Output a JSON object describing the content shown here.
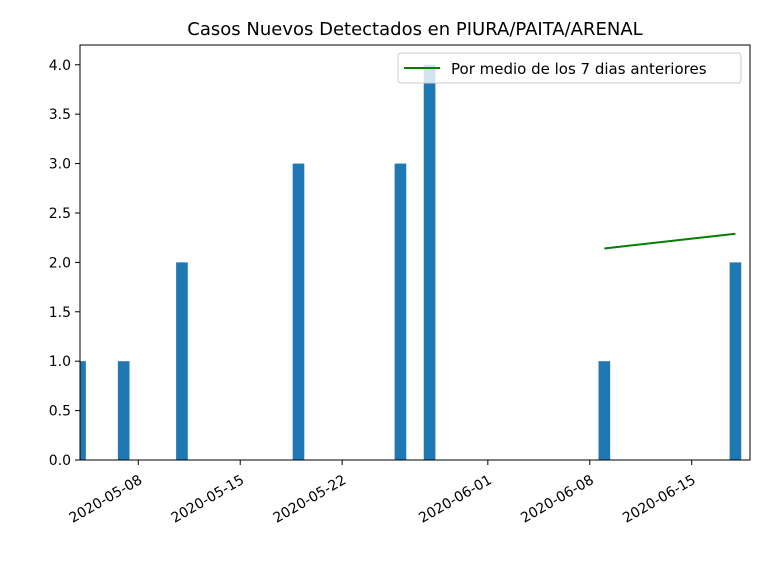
{
  "chart_data": {
    "type": "bar",
    "title": "Casos Nuevos Detectados en PIURA/PAITA/ARENAL",
    "xlabel": "",
    "ylabel": "",
    "ylim": [
      0,
      4.2
    ],
    "xlim": [
      "2020-05-04",
      "2020-06-19"
    ],
    "yticks": [
      "0.0",
      "0.5",
      "1.0",
      "1.5",
      "2.0",
      "2.5",
      "3.0",
      "3.5",
      "4.0"
    ],
    "xticks": [
      "2020-05-08",
      "2020-05-15",
      "2020-05-22",
      "2020-06-01",
      "2020-06-08",
      "2020-06-15"
    ],
    "grid": false,
    "legend_position": "top-right",
    "bars": [
      {
        "x": "2020-05-04",
        "value": 1
      },
      {
        "x": "2020-05-07",
        "value": 1
      },
      {
        "x": "2020-05-11",
        "value": 2
      },
      {
        "x": "2020-05-19",
        "value": 3
      },
      {
        "x": "2020-05-26",
        "value": 3
      },
      {
        "x": "2020-05-28",
        "value": 4
      },
      {
        "x": "2020-06-09",
        "value": 1
      },
      {
        "x": "2020-06-18",
        "value": 2
      }
    ],
    "bar_color": "#1f77b4",
    "series": [
      {
        "name": "Por medio de los 7 dias anteriores",
        "type": "line",
        "color": "#008000",
        "points": [
          {
            "x": "2020-06-09",
            "y": 2.14
          },
          {
            "x": "2020-06-18",
            "y": 2.29
          }
        ]
      }
    ]
  }
}
